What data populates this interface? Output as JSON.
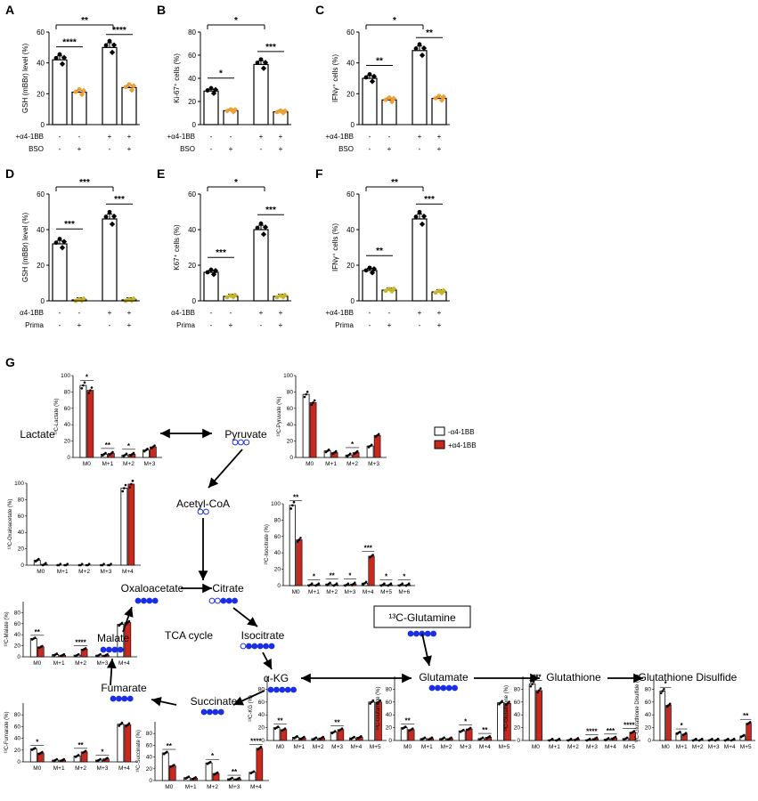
{
  "panels": {
    "A": {
      "label": "A",
      "ylabel": "GSH (mBBr) level (%)",
      "ymax": 60,
      "yticks": [
        0,
        20,
        40,
        60
      ],
      "values": [
        42,
        21,
        50,
        24
      ],
      "cond1": "+α4-1BB",
      "cond2": "BSO",
      "row1": [
        "-",
        "-",
        "+",
        "+"
      ],
      "row2": [
        "-",
        "+",
        "-",
        "+"
      ],
      "sig": [
        {
          "from": 0,
          "to": 1,
          "stars": "****"
        },
        {
          "from": 2,
          "to": 3,
          "stars": "****"
        },
        {
          "from": 0,
          "to": 2,
          "stars": "**"
        }
      ]
    },
    "B": {
      "label": "B",
      "ylabel": "Ki-67⁺ cells (%)",
      "ymax": 80,
      "yticks": [
        0,
        20,
        40,
        60,
        80
      ],
      "values": [
        29,
        12,
        52,
        11
      ],
      "cond1": "+α4-1BB",
      "cond2": "BSO",
      "row1": [
        "-",
        "-",
        "+",
        "+"
      ],
      "row2": [
        "-",
        "+",
        "-",
        "+"
      ],
      "sig": [
        {
          "from": 0,
          "to": 1,
          "stars": "*"
        },
        {
          "from": 2,
          "to": 3,
          "stars": "***"
        },
        {
          "from": 0,
          "to": 2,
          "stars": "*"
        }
      ]
    },
    "C": {
      "label": "C",
      "ylabel": "IFNγ⁺ cells (%)",
      "ymax": 60,
      "yticks": [
        0,
        20,
        40,
        60
      ],
      "values": [
        30,
        16,
        48,
        17
      ],
      "cond1": "+α4-1BB",
      "cond2": "BSO",
      "row1": [
        "-",
        "-",
        "+",
        "+"
      ],
      "row2": [
        "-",
        "+",
        "-",
        "+"
      ],
      "sig": [
        {
          "from": 0,
          "to": 1,
          "stars": "**"
        },
        {
          "from": 2,
          "to": 3,
          "stars": "**"
        },
        {
          "from": 0,
          "to": 2,
          "stars": "*"
        }
      ]
    },
    "D": {
      "label": "D",
      "ylabel": "GSH (mBBr) level (%)",
      "ymax": 60,
      "yticks": [
        0,
        20,
        40,
        60
      ],
      "values": [
        32,
        0.5,
        46,
        0.5
      ],
      "cond1": "α4-1BB",
      "cond2": "Prima",
      "row1": [
        "-",
        "-",
        "+",
        "+"
      ],
      "row2": [
        "-",
        "+",
        "-",
        "+"
      ],
      "sig": [
        {
          "from": 0,
          "to": 1,
          "stars": "***"
        },
        {
          "from": 2,
          "to": 3,
          "stars": "***"
        },
        {
          "from": 0,
          "to": 2,
          "stars": "***"
        }
      ]
    },
    "E": {
      "label": "E",
      "ylabel": "K67⁺ cells (%)",
      "ymax": 60,
      "yticks": [
        0,
        20,
        40,
        60
      ],
      "values": [
        16,
        2.5,
        40,
        2.5
      ],
      "cond1": "α4-1BB",
      "cond2": "Prima",
      "row1": [
        "-",
        "-",
        "+",
        "+"
      ],
      "row2": [
        "-",
        "+",
        "-",
        "+"
      ],
      "sig": [
        {
          "from": 0,
          "to": 1,
          "stars": "***"
        },
        {
          "from": 2,
          "to": 3,
          "stars": "***"
        },
        {
          "from": 0,
          "to": 2,
          "stars": "*"
        }
      ]
    },
    "F": {
      "label": "F",
      "ylabel": "IFNγ⁺ cells (%)",
      "ymax": 60,
      "yticks": [
        0,
        20,
        40,
        60
      ],
      "values": [
        17,
        6,
        46,
        5
      ],
      "cond1": "+α4-1BB",
      "cond2": "Prima",
      "row1": [
        "-",
        "-",
        "+",
        "+"
      ],
      "row2": [
        "-",
        "+",
        "-",
        "+"
      ],
      "sig": [
        {
          "from": 0,
          "to": 1,
          "stars": "**"
        },
        {
          "from": 2,
          "to": 3,
          "stars": "***"
        },
        {
          "from": 0,
          "to": 2,
          "stars": "**"
        }
      ]
    }
  },
  "panelG": {
    "label": "G",
    "legend": {
      "minus": "-α4-1BB",
      "plus": "+α4-1BB"
    },
    "nodes": {
      "lactate": "Lactate",
      "pyruvate": "Pyruvate",
      "acetylcoa": "Acetyl-CoA",
      "oxaloacetate": "Oxaloacetate",
      "citrate": "Citrate",
      "isocitrate": "Isocitrate",
      "akg": "α-KG",
      "succinate": "Succinate",
      "fumarate": "Fumarate",
      "malate": "Malate",
      "tca": "TCA cycle",
      "glutamine": "¹³C-Glutamine",
      "glutamate": "Glutamate",
      "glutathione": "Glutathione",
      "disulfide": "Glutathione Disulfide"
    },
    "minis": [
      {
        "id": "lactate",
        "ylabel": "¹³C-Lactate (%)",
        "cats": [
          "M0",
          "M+1",
          "M+2",
          "M+3"
        ],
        "minus": [
          88,
          4,
          3,
          9
        ],
        "plus": [
          82,
          5,
          4,
          13
        ],
        "stars": [
          "*",
          "**",
          "*",
          ""
        ]
      },
      {
        "id": "pyruvate",
        "ylabel": "¹³C-Pyruvate (%)",
        "cats": [
          "M0",
          "M+1",
          "M+2",
          "M+3"
        ],
        "minus": [
          77,
          8,
          3,
          14
        ],
        "plus": [
          67,
          6,
          6,
          27
        ],
        "stars": [
          "",
          "",
          "*",
          ""
        ]
      },
      {
        "id": "oxaloacetate",
        "ylabel": "¹³C-Oxaloacetate (%)",
        "cats": [
          "M0",
          "M+1",
          "M+2",
          "M+3",
          "M+4"
        ],
        "minus": [
          6,
          0,
          0,
          0,
          94
        ],
        "plus": [
          1,
          0,
          0,
          0,
          99
        ],
        "stars": [
          "",
          "",
          "",
          "",
          ""
        ]
      },
      {
        "id": "isocitrate",
        "ylabel": "¹³C-Isocitrate (%)",
        "cats": [
          "M0",
          "M+1",
          "M+2",
          "M+3",
          "M+4",
          "M+5",
          "M+6"
        ],
        "minus": [
          98,
          1,
          2,
          1,
          3,
          1,
          1
        ],
        "plus": [
          56,
          1,
          1,
          2,
          36,
          1,
          1
        ],
        "stars": [
          "**",
          "*",
          "**",
          "*",
          "***",
          "*",
          "*"
        ]
      },
      {
        "id": "malate",
        "ylabel": "¹³C-Malate (%)",
        "cats": [
          "M0",
          "M+1",
          "M+2",
          "M+3",
          "M+4"
        ],
        "minus": [
          33,
          4,
          3,
          3,
          59
        ],
        "plus": [
          18,
          3,
          14,
          3,
          62
        ],
        "stars": [
          "**",
          "",
          "****",
          "",
          ""
        ]
      },
      {
        "id": "fumarate",
        "ylabel": "¹³C-Fumarate (%)",
        "cats": [
          "M0",
          "M+1",
          "M+2",
          "M+3",
          "M+4"
        ],
        "minus": [
          22,
          3,
          10,
          3,
          64
        ],
        "plus": [
          15,
          3,
          17,
          5,
          63
        ],
        "stars": [
          "*",
          "",
          "**",
          "*",
          ""
        ]
      },
      {
        "id": "succinate",
        "ylabel": "¹³C-Succinate (%)",
        "cats": [
          "M0",
          "M+1",
          "M+2",
          "M+3",
          "M+4"
        ],
        "minus": [
          47,
          5,
          30,
          3,
          14
        ],
        "plus": [
          25,
          4,
          12,
          3,
          55
        ],
        "stars": [
          "**",
          "",
          "*",
          "**",
          "****"
        ]
      },
      {
        "id": "akg",
        "ylabel": "¹³C-KG (%)",
        "cats": [
          "M0",
          "M+1",
          "M+2",
          "M+3",
          "M+4",
          "M+5"
        ],
        "minus": [
          20,
          5,
          3,
          13,
          4,
          60
        ],
        "plus": [
          17,
          4,
          4,
          17,
          5,
          60
        ],
        "stars": [
          "**",
          "",
          "",
          "**",
          "",
          ""
        ]
      },
      {
        "id": "glutamate",
        "ylabel": "¹³C-Glutamate (%)",
        "cats": [
          "M0",
          "M+1",
          "M+2",
          "M+3",
          "M+4",
          "M+5"
        ],
        "minus": [
          20,
          3,
          3,
          15,
          3,
          59
        ],
        "plus": [
          17,
          3,
          3,
          18,
          5,
          58
        ],
        "stars": [
          "**",
          "",
          "",
          "*",
          "**",
          ""
        ]
      },
      {
        "id": "glutathione",
        "ylabel": "¹³C-Glutathione (%)",
        "cats": [
          "M0",
          "M+1",
          "M+2",
          "M+3",
          "M+4",
          "M+5"
        ],
        "minus": [
          88,
          1,
          1,
          1,
          2,
          3
        ],
        "plus": [
          78,
          1,
          2,
          3,
          4,
          13
        ],
        "stars": [
          "****",
          "",
          "",
          "****",
          "***",
          "****"
        ]
      },
      {
        "id": "disulfide",
        "ylabel": "¹³C-Glutathione Disulfide (%)",
        "cats": [
          "M0",
          "M+1",
          "M+2",
          "M+3",
          "M+4",
          "M+5"
        ],
        "minus": [
          77,
          12,
          1,
          1,
          1,
          7
        ],
        "plus": [
          55,
          10,
          1,
          1,
          1,
          27
        ],
        "stars": [
          "*",
          "*",
          "",
          "",
          "",
          "**"
        ]
      }
    ]
  },
  "colors": {
    "orange": "#f0a030",
    "olive": "#c8b428",
    "red": "#c8281e",
    "blue": "#1a2ee6",
    "black": "#000000"
  }
}
